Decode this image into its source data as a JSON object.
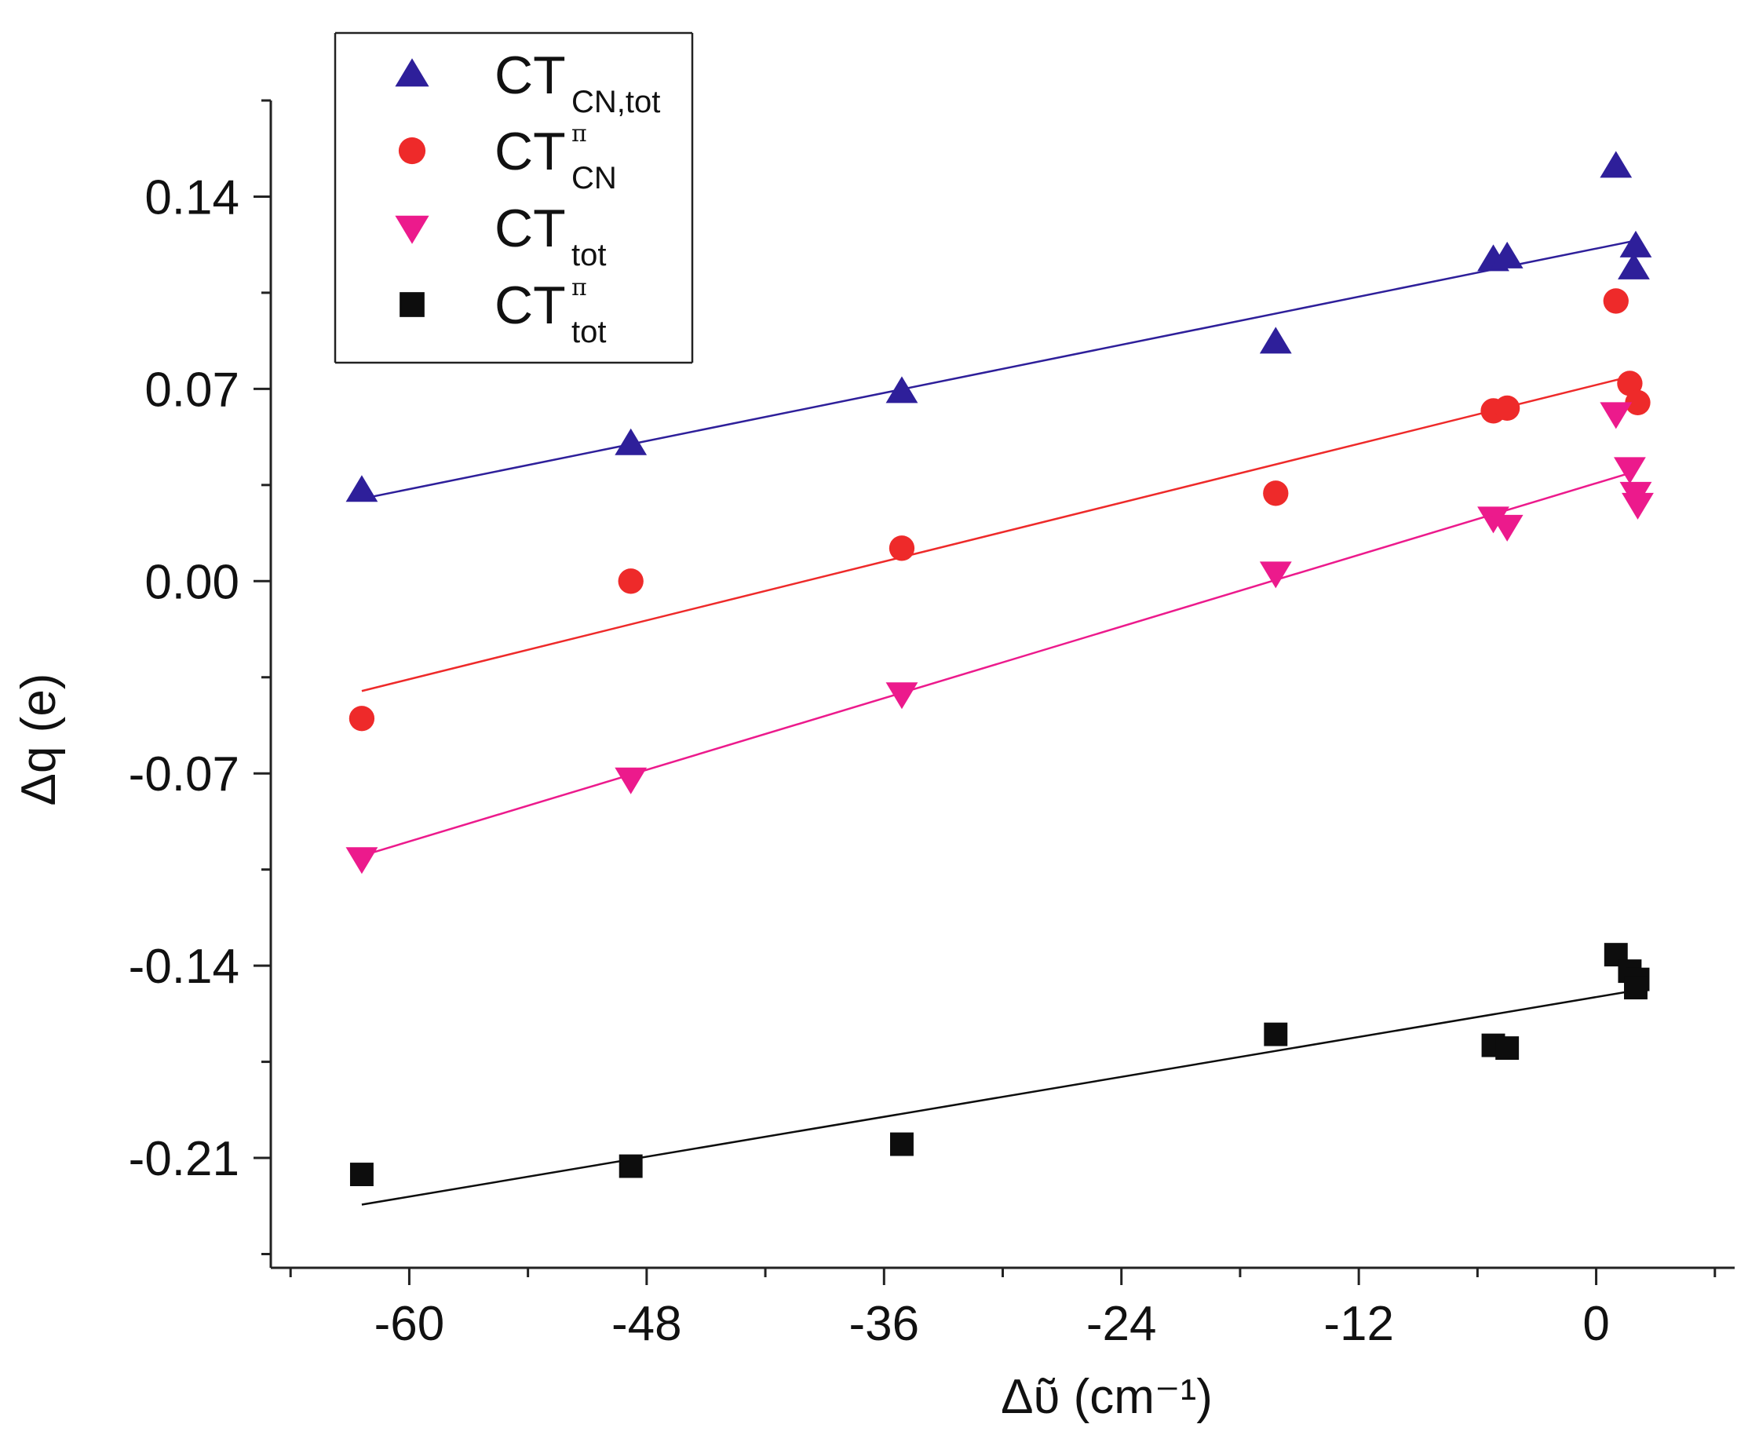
{
  "chart_data": {
    "type": "scatter",
    "xlabel": "Δῦ (cm⁻¹)",
    "ylabel": "Δq (e)",
    "xlim": [
      -67,
      7
    ],
    "ylim": [
      -0.25,
      0.175
    ],
    "xticks": [
      -60,
      -48,
      -36,
      -24,
      -12,
      0
    ],
    "xtick_labels": [
      "-60",
      "-48",
      "-36",
      "-24",
      "-12",
      "0"
    ],
    "yticks": [
      -0.21,
      -0.14,
      -0.07,
      0.0,
      0.07,
      0.14
    ],
    "ytick_labels": [
      "-0.21",
      "-0.14",
      "-0.07",
      "0.00",
      "0.07",
      "0.14"
    ],
    "grid": false,
    "legend_position": "top-left",
    "series": [
      {
        "name": "CT",
        "subscript": "CN,tot",
        "superscript": "",
        "marker": "triangle-up",
        "color": "#2e1f9a",
        "points": [
          [
            -62.4,
            0.033
          ],
          [
            -48.8,
            0.05
          ],
          [
            -35.1,
            0.069
          ],
          [
            -16.2,
            0.087
          ],
          [
            -5.2,
            0.117
          ],
          [
            -4.5,
            0.118
          ],
          [
            1.0,
            0.151
          ],
          [
            2.0,
            0.122
          ],
          [
            1.9,
            0.114
          ]
        ],
        "fit": [
          [
            -62.4,
            0.03
          ],
          [
            2.0,
            0.124
          ]
        ]
      },
      {
        "name": "CT",
        "subscript": "CN",
        "superscript": "π",
        "marker": "circle",
        "color": "#ee2a2a",
        "points": [
          [
            -62.4,
            -0.05
          ],
          [
            -48.8,
            0.0
          ],
          [
            -35.1,
            0.012
          ],
          [
            -16.2,
            0.032
          ],
          [
            -5.2,
            0.062
          ],
          [
            -4.5,
            0.063
          ],
          [
            1.0,
            0.102
          ],
          [
            1.7,
            0.072
          ],
          [
            2.1,
            0.065
          ]
        ],
        "fit": [
          [
            -62.4,
            -0.04
          ],
          [
            2.0,
            0.075
          ]
        ]
      },
      {
        "name": "CT",
        "subscript": "tot",
        "superscript": "",
        "marker": "triangle-down",
        "color": "#ec1a8c",
        "points": [
          [
            -62.4,
            -0.101
          ],
          [
            -48.8,
            -0.072
          ],
          [
            -35.1,
            -0.041
          ],
          [
            -16.2,
            0.003
          ],
          [
            -5.2,
            0.023
          ],
          [
            -4.5,
            0.02
          ],
          [
            1.0,
            0.061
          ],
          [
            1.7,
            0.041
          ],
          [
            2.0,
            0.032
          ],
          [
            2.1,
            0.028
          ]
        ],
        "fit": [
          [
            -62.4,
            -0.1
          ],
          [
            2.0,
            0.04
          ]
        ]
      },
      {
        "name": "CT",
        "subscript": "tot",
        "superscript": "π",
        "marker": "square",
        "color": "#0d0d0d",
        "points": [
          [
            -62.4,
            -0.216
          ],
          [
            -48.8,
            -0.213
          ],
          [
            -35.1,
            -0.205
          ],
          [
            -16.2,
            -0.165
          ],
          [
            -5.2,
            -0.169
          ],
          [
            -4.5,
            -0.17
          ],
          [
            1.0,
            -0.136
          ],
          [
            1.7,
            -0.142
          ],
          [
            2.1,
            -0.145
          ],
          [
            2.0,
            -0.148
          ]
        ],
        "fit": [
          [
            -62.4,
            -0.227
          ],
          [
            2.0,
            -0.149
          ]
        ]
      }
    ]
  }
}
